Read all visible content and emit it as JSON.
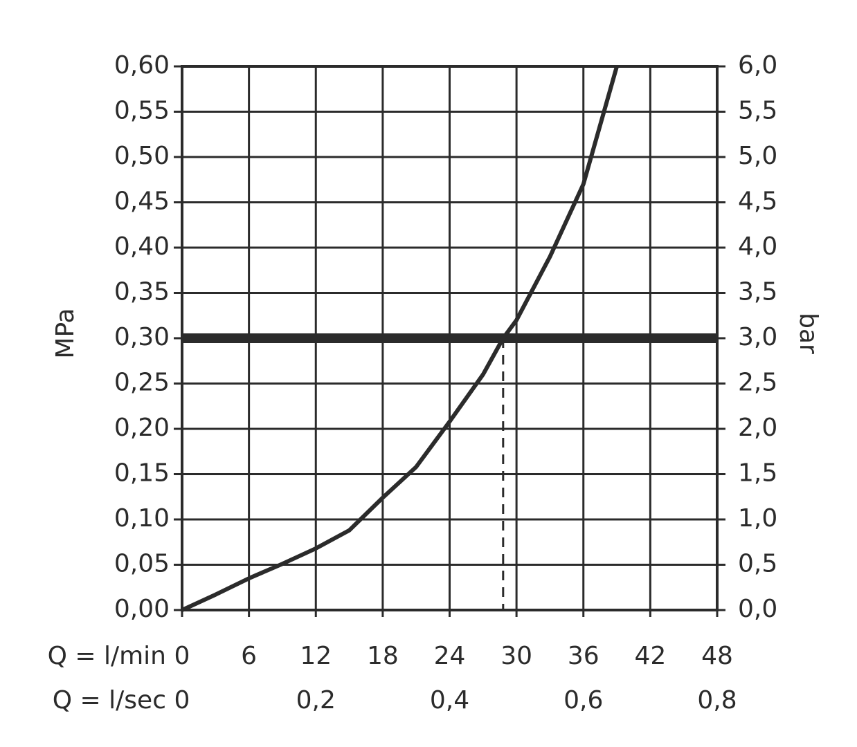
{
  "chart_data": {
    "type": "line",
    "xlabel": "Q = l/min",
    "x2label": "Q = l/sec",
    "ylabel": "MPa",
    "y2label": "bar",
    "x": [
      0,
      3,
      6,
      9,
      12,
      15,
      18,
      21,
      24,
      27,
      28.8,
      30,
      33,
      36,
      39
    ],
    "series": [
      {
        "color": "#2b2b2b",
        "values": [
          0,
          0.017,
          0.035,
          0.051,
          0.068,
          0.088,
          0.124,
          0.158,
          0.208,
          0.26,
          0.3,
          0.32,
          0.39,
          0.47,
          0.6
        ]
      }
    ],
    "xlim": [
      0,
      48
    ],
    "xticks": [
      0,
      6,
      12,
      18,
      24,
      30,
      36,
      42,
      48
    ],
    "x2lim": [
      0,
      0.8
    ],
    "x2ticks": [
      0,
      {
        "value": 0.2,
        "label": "0,2"
      },
      {
        "value": 0.4,
        "label": "0,4"
      },
      {
        "value": 0.6,
        "label": "0,6"
      },
      {
        "value": 0.8,
        "label": "0,8"
      }
    ],
    "ylim": [
      0,
      0.6
    ],
    "yticks": [
      {
        "value": 0,
        "label": "0,00"
      },
      {
        "value": 0.05,
        "label": "0,05"
      },
      {
        "value": 0.1,
        "label": "0,10"
      },
      {
        "value": 0.15,
        "label": "0,15"
      },
      {
        "value": 0.2,
        "label": "0,20"
      },
      {
        "value": 0.25,
        "label": "0,25"
      },
      {
        "value": 0.3,
        "label": "0,30"
      },
      {
        "value": 0.35,
        "label": "0,35"
      },
      {
        "value": 0.4,
        "label": "0,40"
      },
      {
        "value": 0.45,
        "label": "0,45"
      },
      {
        "value": 0.5,
        "label": "0,50"
      },
      {
        "value": 0.55,
        "label": "0,55"
      },
      {
        "value": 0.6,
        "label": "0,60"
      }
    ],
    "y2lim": [
      0,
      6
    ],
    "y2ticks": [
      {
        "value": 0,
        "label": "0,0"
      },
      {
        "value": 0.5,
        "label": "0,5"
      },
      {
        "value": 1,
        "label": "1,0"
      },
      {
        "value": 1.5,
        "label": "1,5"
      },
      {
        "value": 2,
        "label": "2,0"
      },
      {
        "value": 2.5,
        "label": "2,5"
      },
      {
        "value": 3,
        "label": "3,0"
      },
      {
        "value": 3.5,
        "label": "3,5"
      },
      {
        "value": 4,
        "label": "4,0"
      },
      {
        "value": 4.5,
        "label": "4,5"
      },
      {
        "value": 5,
        "label": "5,0"
      },
      {
        "value": 5.5,
        "label": "5,5"
      },
      {
        "value": 6,
        "label": "6,0"
      }
    ],
    "hline": 0.3,
    "vline": 28.8,
    "grid": true
  }
}
